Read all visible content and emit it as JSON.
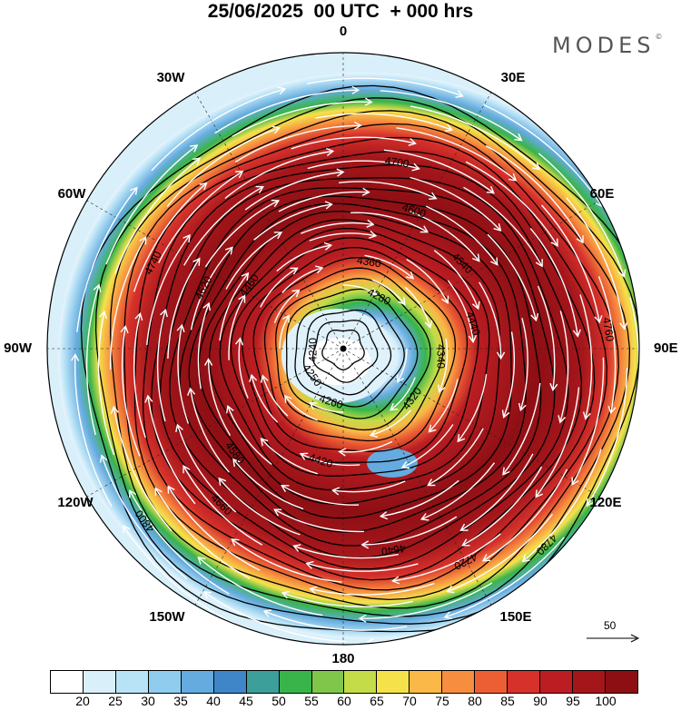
{
  "header": {
    "title": "25/06/2025  00 UTC  + 000 hrs",
    "brand": "MODES",
    "brand_mark": "©"
  },
  "map": {
    "projection": "north-polar-stereographic",
    "longitude_labels": [
      "0",
      "30E",
      "60E",
      "90E",
      "120E",
      "150E",
      "180",
      "150W",
      "120W",
      "90W",
      "60W",
      "30W"
    ],
    "contour_labels": [
      "4240",
      "4250",
      "4260",
      "4280",
      "4320",
      "4340",
      "4360",
      "4420",
      "4440",
      "4460",
      "4540",
      "4580",
      "4600",
      "4620",
      "4640",
      "4660",
      "4700",
      "4720",
      "4740",
      "4760",
      "4780",
      "4800"
    ],
    "reference_vector": {
      "label": "50"
    }
  },
  "colorbar": {
    "ticks": [
      "20",
      "25",
      "30",
      "35",
      "40",
      "45",
      "50",
      "55",
      "60",
      "65",
      "70",
      "75",
      "80",
      "85",
      "90",
      "95",
      "100"
    ],
    "colors": [
      "#ffffff",
      "#d9f0fb",
      "#b8e2f6",
      "#90ccee",
      "#65abdf",
      "#3f86c8",
      "#3c9f9a",
      "#38b44a",
      "#7fc64a",
      "#c3dc48",
      "#f5e24a",
      "#f9b847",
      "#f78e3f",
      "#ec5f34",
      "#d6312b",
      "#bb1d22",
      "#a5161b",
      "#8d0f14"
    ]
  }
}
